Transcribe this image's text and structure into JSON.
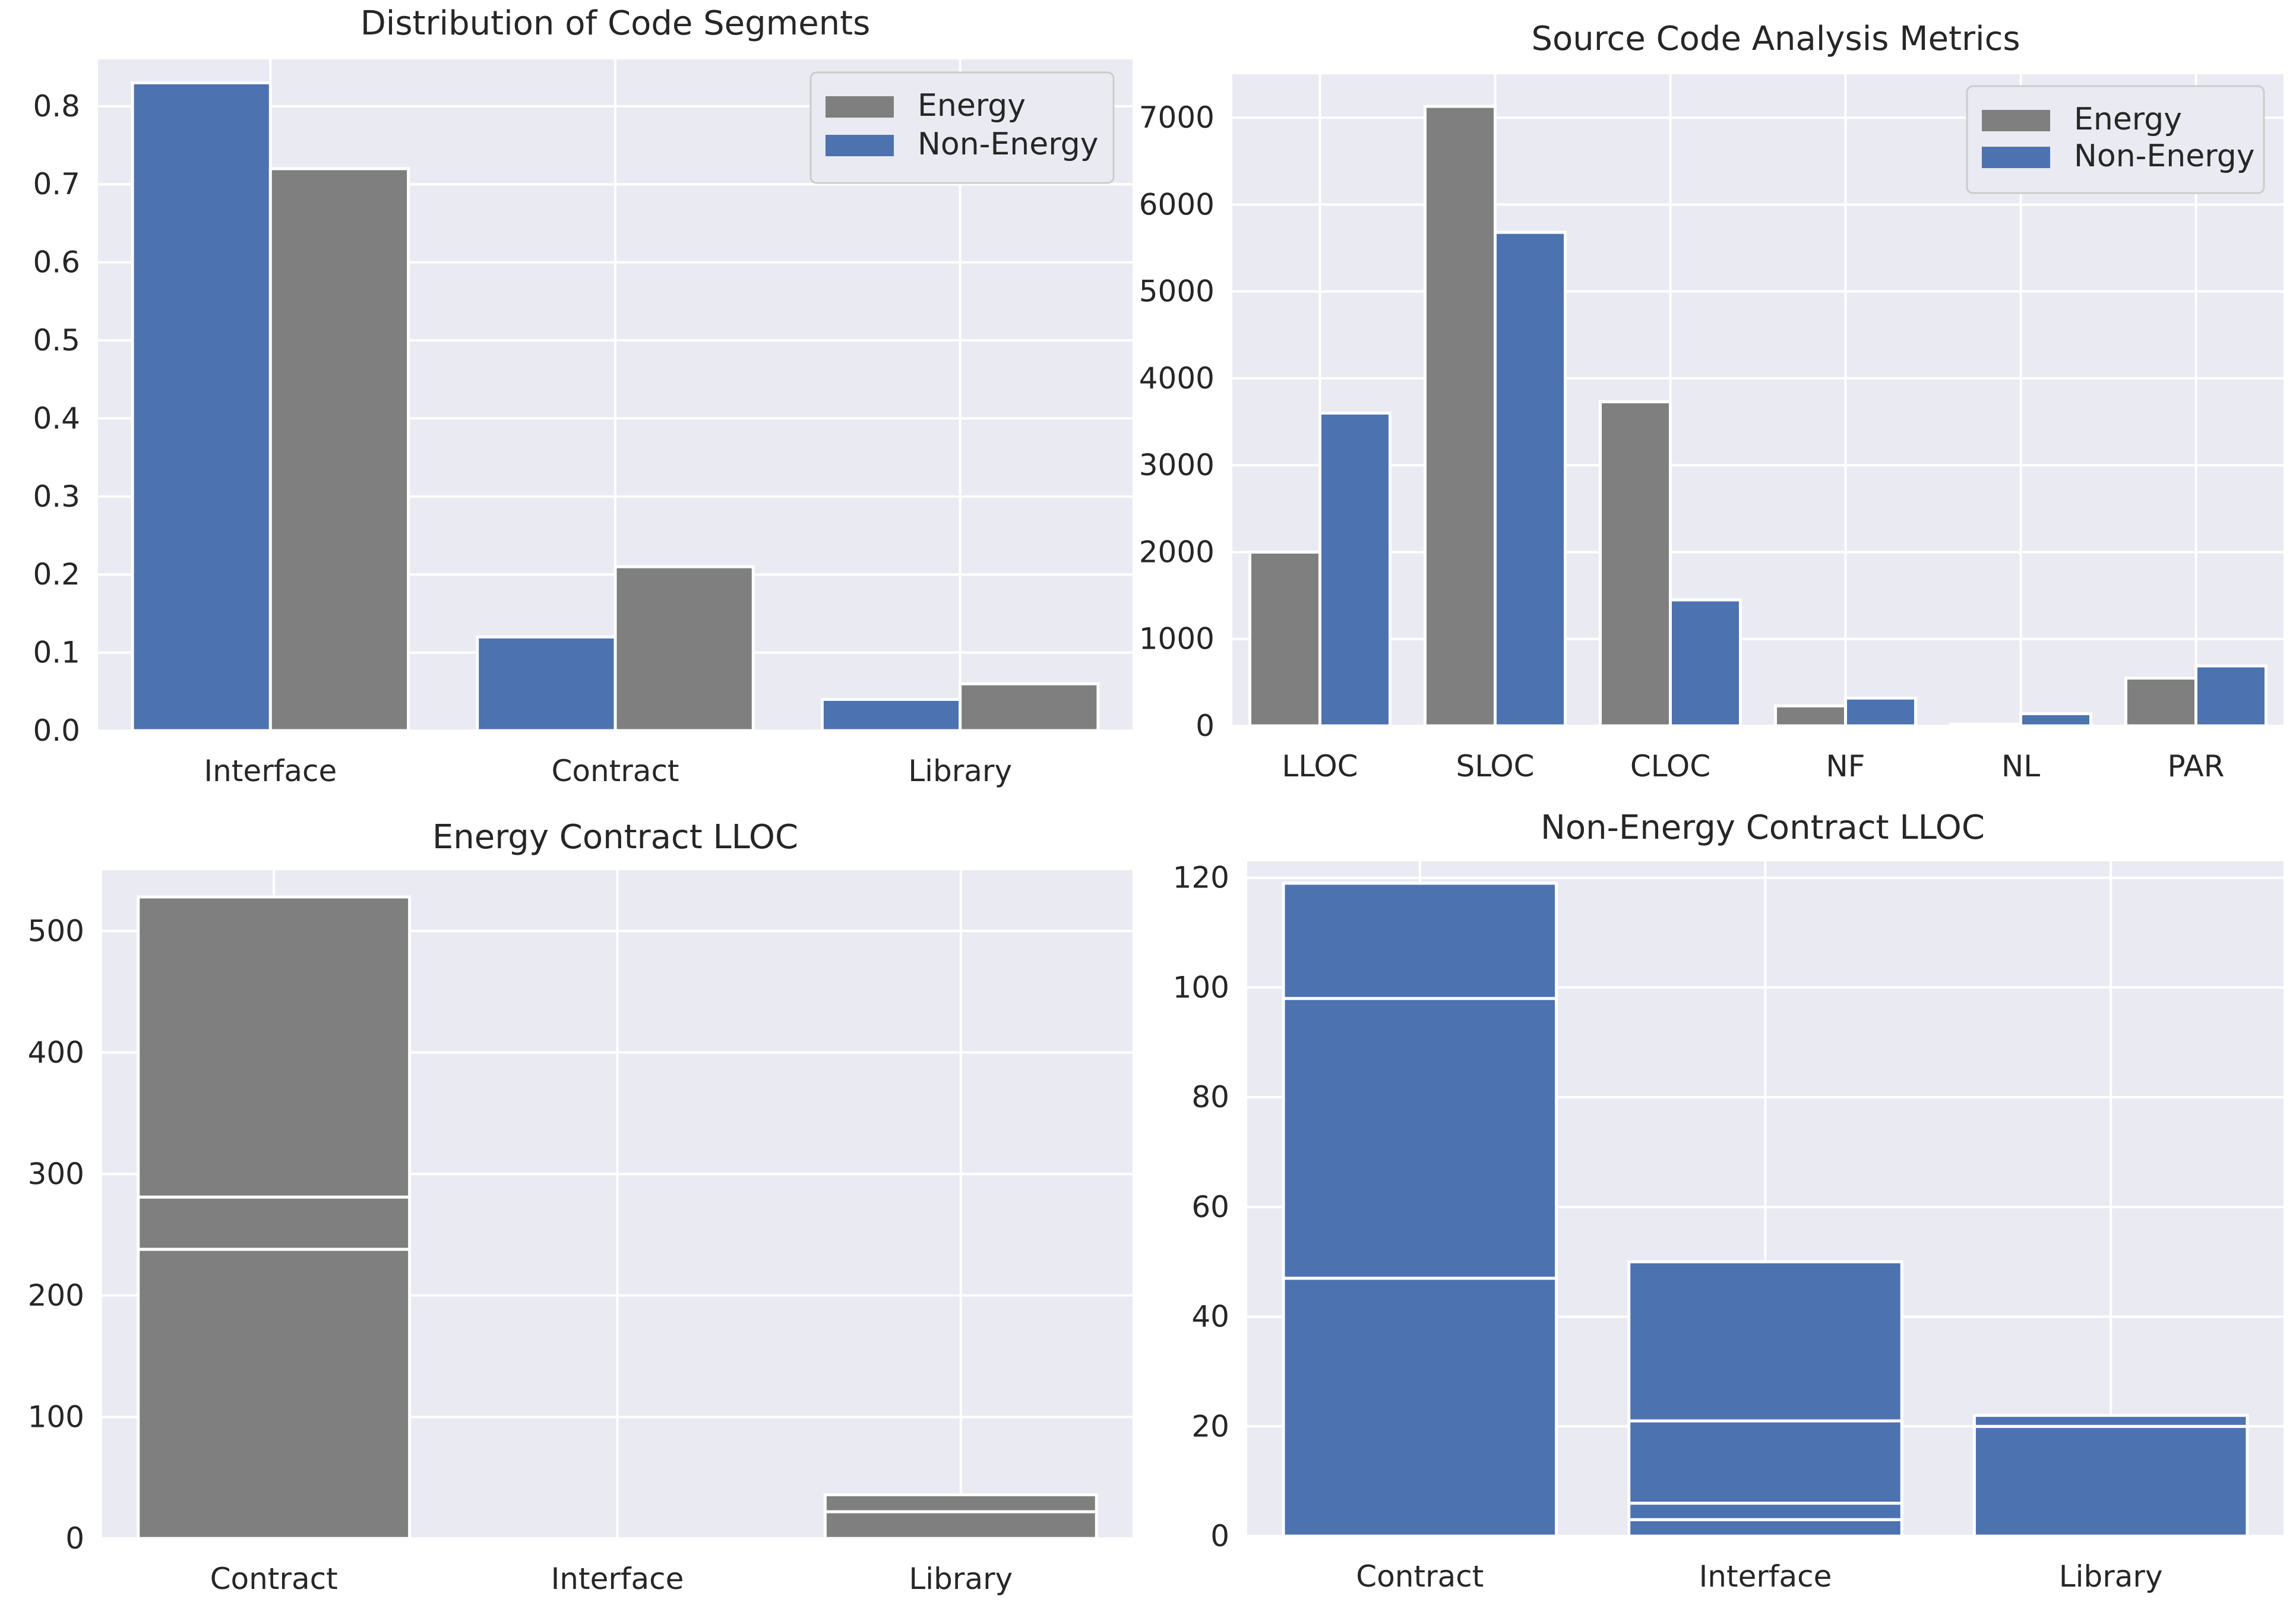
{
  "colors": {
    "energy": "#7f7f7f",
    "non_energy": "#4c72b0",
    "panel_bg": "#eaeaf2",
    "grid": "#ffffff",
    "bar_edge": "#ffffff"
  },
  "chart_data": [
    {
      "id": "p1",
      "type": "bar",
      "title": "Distribution of Code Segments",
      "categories": [
        "Interface",
        "Contract",
        "Library"
      ],
      "series": [
        {
          "name": "Non-Energy",
          "color_key": "non_energy",
          "values": [
            0.83,
            0.12,
            0.04
          ]
        },
        {
          "name": "Energy",
          "color_key": "energy",
          "values": [
            0.72,
            0.21,
            0.06
          ]
        }
      ],
      "legend": [
        {
          "name": "Energy",
          "color_key": "energy"
        },
        {
          "name": "Non-Energy",
          "color_key": "non_energy"
        }
      ],
      "legend_loc": "upper right",
      "ylim": [
        0,
        0.86
      ],
      "yticks": [
        0.0,
        0.1,
        0.2,
        0.3,
        0.4,
        0.5,
        0.6,
        0.7,
        0.8
      ],
      "ytick_labels": [
        "0.0",
        "0.1",
        "0.2",
        "0.3",
        "0.4",
        "0.5",
        "0.6",
        "0.7",
        "0.8"
      ],
      "xlabel": "",
      "ylabel": "",
      "grid": true
    },
    {
      "id": "p2",
      "type": "bar",
      "title": "Source Code Analysis Metrics",
      "categories": [
        "LLOC",
        "SLOC",
        "CLOC",
        "NF",
        "NL",
        "PAR"
      ],
      "series": [
        {
          "name": "Energy",
          "color_key": "energy",
          "values": [
            2000,
            7130,
            3730,
            230,
            20,
            550
          ]
        },
        {
          "name": "Non-Energy",
          "color_key": "non_energy",
          "values": [
            3600,
            5680,
            1450,
            320,
            140,
            690
          ]
        }
      ],
      "legend": [
        {
          "name": "Energy",
          "color_key": "energy"
        },
        {
          "name": "Non-Energy",
          "color_key": "non_energy"
        }
      ],
      "legend_loc": "upper right",
      "ylim": [
        0,
        7500
      ],
      "yticks": [
        0,
        1000,
        2000,
        3000,
        4000,
        5000,
        6000,
        7000
      ],
      "ytick_labels": [
        "0",
        "1000",
        "2000",
        "3000",
        "4000",
        "5000",
        "6000",
        "7000"
      ],
      "xlabel": "",
      "ylabel": "",
      "grid": true
    },
    {
      "id": "p3",
      "type": "bar",
      "stacked": true,
      "title": "Energy Contract LLOC",
      "categories": [
        "Contract",
        "Interface",
        "Library"
      ],
      "color_key": "energy",
      "segments": [
        [
          238,
          43,
          247
        ],
        [],
        [
          22,
          14
        ]
      ],
      "ylim": [
        0,
        550
      ],
      "yticks": [
        0,
        100,
        200,
        300,
        400,
        500
      ],
      "ytick_labels": [
        "0",
        "100",
        "200",
        "300",
        "400",
        "500"
      ],
      "xlabel": "",
      "ylabel": "",
      "grid": true
    },
    {
      "id": "p4",
      "type": "bar",
      "stacked": true,
      "title": "Non-Energy Contract LLOC",
      "categories": [
        "Contract",
        "Interface",
        "Library"
      ],
      "color_key": "non_energy",
      "segments": [
        [
          47,
          51,
          21
        ],
        [
          3,
          3,
          15,
          29
        ],
        [
          20,
          2
        ]
      ],
      "ylim": [
        0,
        123
      ],
      "yticks": [
        0,
        20,
        40,
        60,
        80,
        100,
        120
      ],
      "ytick_labels": [
        "0",
        "20",
        "40",
        "60",
        "80",
        "100",
        "120"
      ],
      "xlabel": "",
      "ylabel": "",
      "grid": true
    }
  ]
}
